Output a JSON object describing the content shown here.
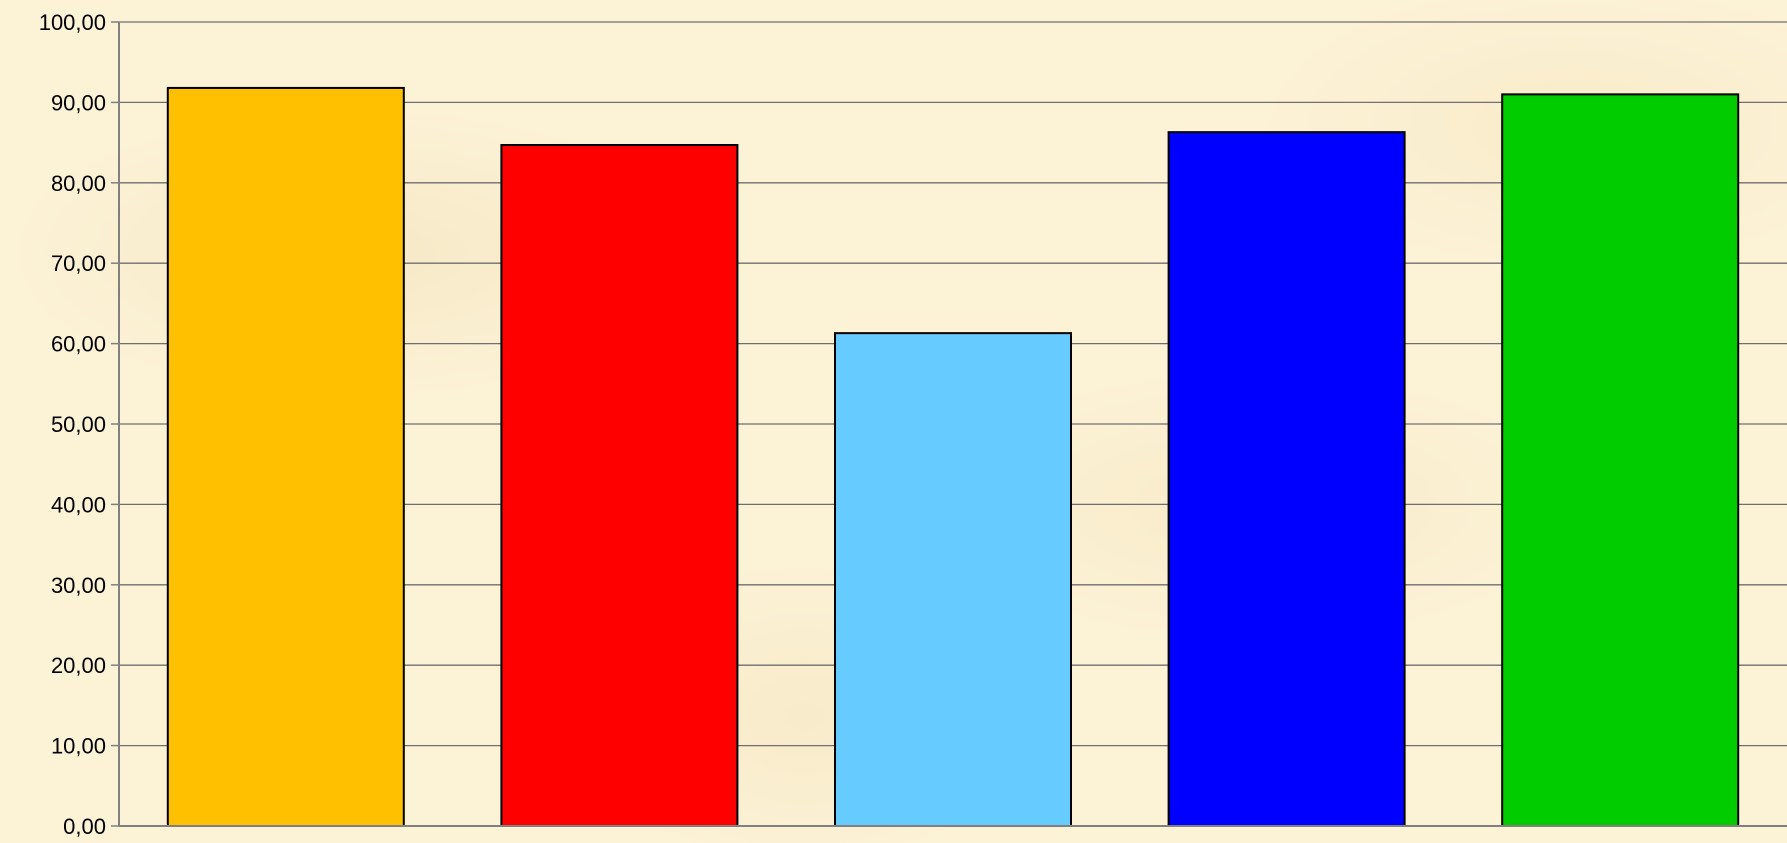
{
  "chart_data": {
    "type": "bar",
    "categories": [
      "",
      "",
      "",
      "",
      ""
    ],
    "values": [
      91.8,
      84.7,
      61.3,
      86.3,
      91.0
    ],
    "colors": [
      "#ffc000",
      "#ff0000",
      "#66ccff",
      "#0000ff",
      "#00cc00"
    ],
    "title": "",
    "xlabel": "",
    "ylabel": "",
    "ylim": [
      0,
      100
    ],
    "yticks": [
      "0,00",
      "10,00",
      "20,00",
      "30,00",
      "40,00",
      "50,00",
      "60,00",
      "70,00",
      "80,00",
      "90,00",
      "100,00"
    ],
    "grid": true,
    "legend": "none"
  }
}
